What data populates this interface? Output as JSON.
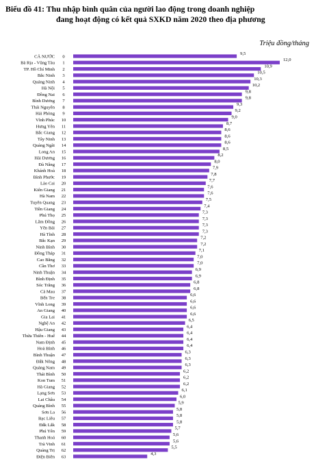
{
  "header": {
    "title_line1": "Biểu đồ 41: Thu nhập bình quân của người lao động trong doanh nghiệp",
    "title_line2": "đang hoạt động có kết quả SXKD năm 2020 theo địa phương",
    "unit": "Triệu đồng/tháng"
  },
  "chart_data": {
    "type": "bar",
    "orientation": "horizontal",
    "title": "Biểu đồ 41: Thu nhập bình quân của người lao động trong doanh nghiệp đang hoạt động có kết quả SXKD năm 2020 theo địa phương",
    "unit": "Triệu đồng/tháng",
    "bar_color": "#7b3fc9",
    "xlim": [
      0,
      12
    ],
    "categories": [
      "CẢ NƯỚC",
      "Bà Rịa - Vũng Tàu",
      "TP. Hồ Chí Minh",
      "Bắc Ninh",
      "Quảng Ninh",
      "Hà Nội",
      "Đồng Nai",
      "Bình Dương",
      "Thái Nguyên",
      "Hải Phòng",
      "Vĩnh Phúc",
      "Hưng Yên",
      "Bắc Giang",
      "Tây Ninh",
      "Quảng Ngãi",
      "Long An",
      "Hải Dương",
      "Đà Nẵng",
      "Khánh Hoà",
      "Bình Phước",
      "Lào Cai",
      "Kiên Giang",
      "Hà Nam",
      "Tuyên Quang",
      "Tiền Giang",
      "Phú Thọ",
      "Lâm Đồng",
      "Yên Bái",
      "Hà Tĩnh",
      "Bắc Kạn",
      "Ninh Bình",
      "Đồng Tháp",
      "Cao Bằng",
      "Cần Thơ",
      "Ninh Thuận",
      "Bình Định",
      "Sóc Trăng",
      "Cà Mau",
      "Bến Tre",
      "Vĩnh Long",
      "An Giang",
      "Gia Lai",
      "Nghệ An",
      "Hậu Giang",
      "Thừa Thiên - Huế",
      "Nam Định",
      "Hoà Bình",
      "Bình Thuận",
      "Đắk Nông",
      "Quảng Nam",
      "Thái Bình",
      "Kon Tum",
      "Hà Giang",
      "Lạng Sơn",
      "Lai Châu",
      "Quảng Bình",
      "Sơn La",
      "Bạc Liêu",
      "Đắk Lắk",
      "Phú Yên",
      "Thanh Hoá",
      "Trà Vinh",
      "Quảng Trị",
      "Điện Biên"
    ],
    "ranks": [
      "0",
      "1",
      "2",
      "3",
      "4",
      "5",
      "6",
      "7",
      "8",
      "9",
      "10",
      "11",
      "12",
      "13",
      "14",
      "15",
      "16",
      "17",
      "18",
      "19",
      "20",
      "21",
      "22",
      "23",
      "24",
      "25",
      "26",
      "27",
      "28",
      "29",
      "30",
      "31",
      "32",
      "33",
      "34",
      "35",
      "36",
      "37",
      "38",
      "39",
      "40",
      "41",
      "42",
      "43",
      "44",
      "45",
      "46",
      "47",
      "48",
      "49",
      "50",
      "51",
      "52",
      "53",
      "54",
      "55",
      "56",
      "57",
      "58",
      "59",
      "60",
      "61",
      "62",
      "63"
    ],
    "values": [
      9.5,
      12.0,
      10.9,
      10.5,
      10.3,
      10.2,
      9.8,
      9.8,
      9.3,
      9.2,
      9.0,
      8.7,
      8.6,
      8.6,
      8.6,
      8.5,
      8.2,
      8.0,
      7.9,
      7.8,
      7.7,
      7.6,
      7.6,
      7.5,
      7.4,
      7.3,
      7.3,
      7.3,
      7.3,
      7.2,
      7.2,
      7.1,
      7.0,
      7.0,
      6.9,
      6.9,
      6.8,
      6.8,
      6.6,
      6.6,
      6.6,
      6.6,
      6.5,
      6.4,
      6.4,
      6.4,
      6.4,
      6.3,
      6.3,
      6.3,
      6.2,
      6.2,
      6.2,
      6.1,
      6.0,
      5.9,
      5.8,
      5.8,
      5.8,
      5.7,
      5.6,
      5.6,
      5.5,
      4.3
    ],
    "value_labels": [
      "9,5",
      "12,0",
      "10,9",
      "10,5",
      "10,3",
      "10,2",
      "9,8",
      "9,8",
      "9,3",
      "9,2",
      "9,0",
      "8,7",
      "8,6",
      "8,6",
      "8,6",
      "8,5",
      "8,2",
      "8,0",
      "7,9",
      "7,8",
      "7,7",
      "7,6",
      "7,6",
      "7,5",
      "7,4",
      "7,3",
      "7,3",
      "7,3",
      "7,3",
      "7,2",
      "7,2",
      "7,1",
      "7,0",
      "7,0",
      "6,9",
      "6,9",
      "6,8",
      "6,8",
      "6,6",
      "6,6",
      "6,6",
      "6,6",
      "6,5",
      "6,4",
      "6,4",
      "6,4",
      "6,4",
      "6,3",
      "6,3",
      "6,3",
      "6,2",
      "6,2",
      "6,2",
      "6,1",
      "6,0",
      "5,9",
      "5,8",
      "5,8",
      "5,8",
      "5,7",
      "5,6",
      "5,6",
      "5,5",
      "4,3"
    ]
  }
}
